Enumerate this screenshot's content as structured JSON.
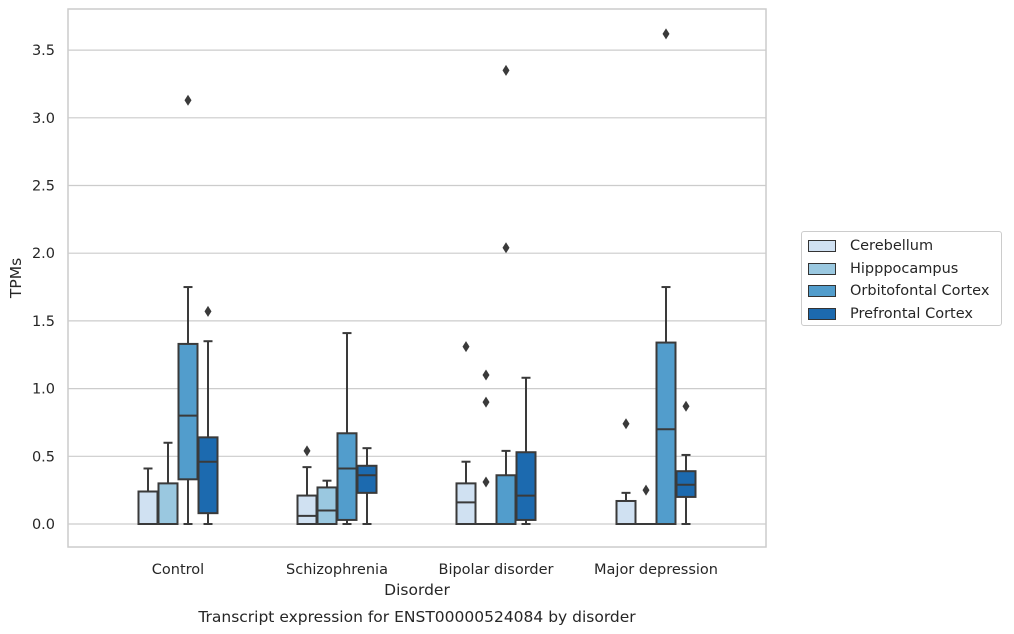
{
  "chart_data": {
    "type": "box",
    "title": "Transcript expression for ENST00000524084 by disorder",
    "xlabel": "Disorder",
    "ylabel": "TPMs",
    "ylim": [
      -0.18,
      3.8
    ],
    "yticks": [
      "0.0",
      "0.5",
      "1.0",
      "1.5",
      "2.0",
      "2.5",
      "3.0",
      "3.5"
    ],
    "grid": true,
    "legend_position": "right",
    "categories": [
      "Control",
      "Schizophrenia",
      "Bipolar disorder",
      "Major depression"
    ],
    "series": [
      {
        "name": "Cerebellum",
        "color": "#d0e1f2",
        "boxes": [
          {
            "whisker_low": 0.0,
            "q1": 0.0,
            "median": 0.0,
            "q3": 0.24,
            "whisker_high": 0.41,
            "outliers": []
          },
          {
            "whisker_low": 0.0,
            "q1": 0.0,
            "median": 0.06,
            "q3": 0.21,
            "whisker_high": 0.42,
            "outliers": [
              0.54
            ]
          },
          {
            "whisker_low": 0.0,
            "q1": 0.0,
            "median": 0.16,
            "q3": 0.3,
            "whisker_high": 0.46,
            "outliers": [
              1.31
            ]
          },
          {
            "whisker_low": 0.0,
            "q1": 0.0,
            "median": 0.0,
            "q3": 0.17,
            "whisker_high": 0.23,
            "outliers": [
              0.74
            ]
          }
        ]
      },
      {
        "name": "Hipppocampus",
        "color": "#9ac8e0",
        "boxes": [
          {
            "whisker_low": 0.0,
            "q1": 0.0,
            "median": 0.0,
            "q3": 0.3,
            "whisker_high": 0.6,
            "outliers": []
          },
          {
            "whisker_low": 0.0,
            "q1": 0.0,
            "median": 0.1,
            "q3": 0.27,
            "whisker_high": 0.32,
            "outliers": []
          },
          {
            "whisker_low": 0.0,
            "q1": 0.0,
            "median": 0.0,
            "q3": 0.0,
            "whisker_high": 0.0,
            "outliers": [
              1.1,
              0.9,
              0.31
            ]
          },
          {
            "whisker_low": 0.0,
            "q1": 0.0,
            "median": 0.0,
            "q3": 0.0,
            "whisker_high": 0.0,
            "outliers": [
              0.25
            ]
          }
        ]
      },
      {
        "name": "Orbitofontal Cortex",
        "color": "#529dcc",
        "boxes": [
          {
            "whisker_low": 0.0,
            "q1": 0.33,
            "median": 0.8,
            "q3": 1.33,
            "whisker_high": 1.75,
            "outliers": [
              3.13
            ]
          },
          {
            "whisker_low": 0.0,
            "q1": 0.03,
            "median": 0.41,
            "q3": 0.67,
            "whisker_high": 1.41,
            "outliers": []
          },
          {
            "whisker_low": 0.0,
            "q1": 0.0,
            "median": 0.0,
            "q3": 0.36,
            "whisker_high": 0.54,
            "outliers": [
              3.35,
              2.04
            ]
          },
          {
            "whisker_low": 0.0,
            "q1": 0.0,
            "median": 0.7,
            "q3": 1.34,
            "whisker_high": 1.75,
            "outliers": [
              3.62
            ]
          }
        ]
      },
      {
        "name": "Prefrontal Cortex",
        "color": "#1c6aaf",
        "boxes": [
          {
            "whisker_low": 0.0,
            "q1": 0.08,
            "median": 0.46,
            "q3": 0.64,
            "whisker_high": 1.35,
            "outliers": [
              1.57
            ]
          },
          {
            "whisker_low": 0.0,
            "q1": 0.23,
            "median": 0.36,
            "q3": 0.43,
            "whisker_high": 0.56,
            "outliers": []
          },
          {
            "whisker_low": 0.0,
            "q1": 0.03,
            "median": 0.21,
            "q3": 0.53,
            "whisker_high": 1.08,
            "outliers": []
          },
          {
            "whisker_low": 0.0,
            "q1": 0.2,
            "median": 0.29,
            "q3": 0.39,
            "whisker_high": 0.51,
            "outliers": [
              0.87
            ]
          }
        ]
      }
    ]
  }
}
